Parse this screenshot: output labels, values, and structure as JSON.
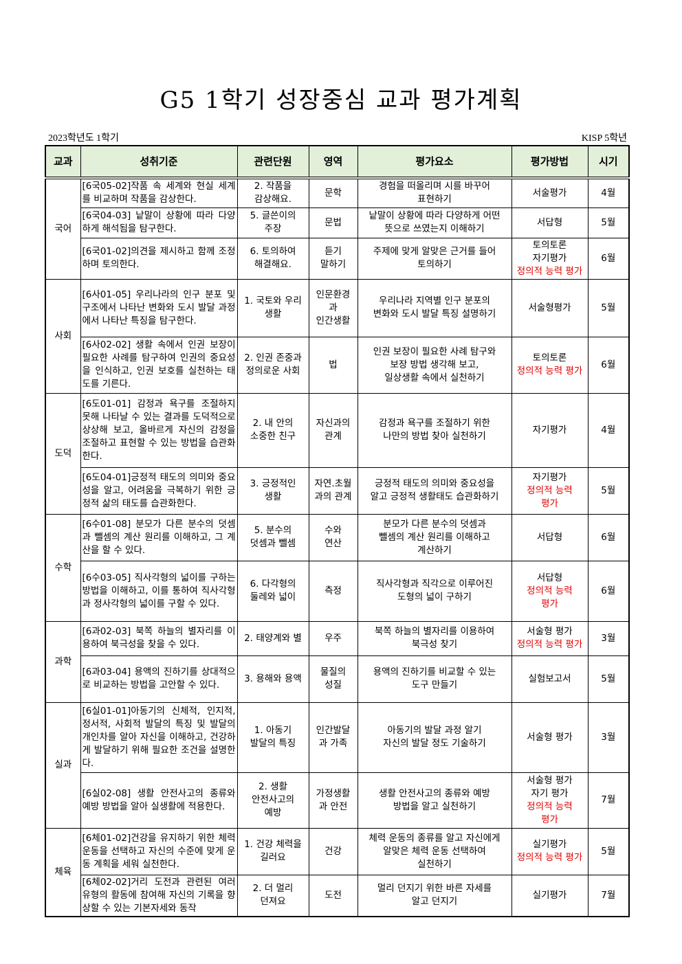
{
  "title": "G5 1학기 성장중심 교과 평가계획",
  "meta": {
    "year": "2023학년도 1학기",
    "grade": "KISP 5학년"
  },
  "colors": {
    "header_bg": "#e2efd9",
    "highlight": "#e00000"
  },
  "headers": [
    "교과",
    "성취기준",
    "관련단원",
    "영역",
    "평가요소",
    "평가방법",
    "시기"
  ],
  "subjects": [
    {
      "name": "국어",
      "rows": [
        {
          "standard": "[6국05-02]작품 속 세계와 현실 세계를 비교하며 작품을 감상한다.",
          "unit": "2. 작품을\n감상해요.",
          "area": "문학",
          "element": "경험을 떠올리며 시를 바꾸어\n표현하기",
          "method": "서술평가",
          "method_note": "",
          "time": "4월"
        },
        {
          "standard": "[6국04-03] 낱말이 상황에 따라 다양하게 해석됨을 탐구한다.",
          "unit": "5. 글쓴이의\n주장",
          "area": "문법",
          "element": "낱말이 상황에 따라 다양하게 어떤\n뜻으로 쓰였는지 이해하기",
          "method": "서답형",
          "method_note": "",
          "time": "5월"
        },
        {
          "standard": "[6국01-02]의견을 제시하고 함께 조정하며 토의한다.",
          "unit": "6. 토의하여\n해결해요.",
          "area": "듣기\n말하기",
          "element": "주제에 맞게 알맞은 근거를 들어\n토의하기",
          "method": "토의토론\n자기평가",
          "method_note": "정의적 능력 평가",
          "time": "6월"
        }
      ]
    },
    {
      "name": "사회",
      "rows": [
        {
          "standard": "[6사01-05] 우리나라의 인구 분포 및 구조에서 나타난 변화와 도시 발달 과정에서 나타난 특징을 탐구한다.",
          "unit": "1. 국토와 우리\n생활",
          "area": "인문환경\n과\n인간생활",
          "element": "우리나라 지역별 인구 분포의\n변화와 도시 발달 특징 설명하기",
          "method": "서술형평가",
          "method_note": "",
          "time": "5월"
        },
        {
          "standard": "[6사02-02] 생활 속에서 인권 보장이 필요한 사례를 탐구하여 인권의 중요성을 인식하고, 인권 보호를 실천하는 태도를 기른다.",
          "unit": "2. 인권 존중과\n정의로운 사회",
          "area": "법",
          "element": "인권 보장이 필요한 사례 탐구와\n보장 방법 생각해 보고,\n일상생활 속에서 실천하기",
          "method": "토의토론",
          "method_note": "정의적 능력 평가",
          "time": "6월"
        }
      ]
    },
    {
      "name": "도덕",
      "rows": [
        {
          "standard": "[6도01-01] 감정과 욕구를 조절하지 못해 나타날 수 있는 결과를 도덕적으로 상상해 보고, 올바르게 자신의 감정을 조절하고 표현할 수 있는 방법을 습관화한다.",
          "unit": "2. 내 안의\n소중한 친구",
          "area": "자신과의\n관계",
          "element": "감정과 욕구를 조절하기 위한\n나만의 방법 찾아 실천하기",
          "method": "자기평가",
          "method_note": "",
          "time": "4월"
        },
        {
          "standard": "[6도04-01]긍정적 태도의 의미와 중요성을 알고, 어려움을 극복하기 위한 긍정적 삶의 태도를 습관화한다.",
          "unit": "3. 긍정적인\n생활",
          "area": "자연.초월\n과의 관계",
          "element": "긍정적 태도의 의미와 중요성을\n알고 긍정적 생활태도 습관화하기",
          "method": "자기평가",
          "method_note": "정의적 능력\n평가",
          "time": "5월"
        }
      ]
    },
    {
      "name": "수학",
      "rows": [
        {
          "standard": "[6수01-08] 분모가 다른 분수의 덧셈과 뺄셈의 계산 원리를 이해하고, 그 계산을 할 수 있다.",
          "unit": "5. 분수의\n덧셈과 뺄셈",
          "area": "수와\n연산",
          "element": "분모가 다른 분수의 덧셈과\n뺄셈의 계산 원리를 이해하고\n계산하기",
          "method": "서답형",
          "method_note": "",
          "time": "6월"
        },
        {
          "standard": "[6수03-05] 직사각형의 넓이를 구하는 방법을 이해하고, 이를 통하여 직사각형과 정사각형의 넓이를 구할 수 있다.",
          "unit": "6. 다각형의\n둘레와 넓이",
          "area": "측정",
          "element": "직사각형과 직각으로 이루어진\n도형의 넓이 구하기",
          "method": "서답형",
          "method_note": "정의적 능력\n평가",
          "time": "6월"
        }
      ]
    },
    {
      "name": "과학",
      "rows": [
        {
          "standard": "[6과02-03] 북쪽 하늘의 별자리를 이용하여 북극성을 찾을 수 있다.",
          "unit": "2. 태양계와 별",
          "area": "우주",
          "element": "북쪽 하늘의 별자리를 이용하여\n북극성 찾기",
          "method": "서술형 평가",
          "method_note": "정의적 능력 평가",
          "time": "3월"
        },
        {
          "standard": "[6과03-04] 용액의 진하기를 상대적으로 비교하는 방법을 고안할 수 있다.",
          "unit": "3. 용해와 용액",
          "area": "물질의\n성질",
          "element": "용액의 진하기를 비교할 수 있는\n도구 만들기",
          "method": "실험보고서",
          "method_note": "",
          "time": "5월"
        }
      ]
    },
    {
      "name": "실과",
      "rows": [
        {
          "standard": "[6실01-01]아동기의 신체적, 인지적, 정서적, 사회적 발달의 특징 및 발달의 개인차를 알아 자신을 이해하고, 건강하게 발달하기 위해 필요한 조건을 설명한다.",
          "unit": "1. 아동기\n발달의 특징",
          "area": "인간발달\n과 가족",
          "element": "아동기의 발달 과정 알기\n자신의 발달 정도 기술하기",
          "method": "서술형 평가",
          "method_note": "",
          "time": "3월"
        },
        {
          "standard": "[6실02-08] 생활 안전사고의 종류와 예방 방법을 알아 실생활에 적용한다.",
          "unit": "2. 생활\n안전사고의\n예방",
          "area": "가정생활\n과 안전",
          "element": "생활 안전사고의 종류와 예방\n방법을 알고 실천하기",
          "method": "서술형 평가\n자기 평가",
          "method_note": "정의적 능력\n평가",
          "time": "7월"
        }
      ]
    },
    {
      "name": "체육",
      "rows": [
        {
          "standard": "[6체01-02]건강을 유지하기 위한 체력 운동을 선택하고 자신의 수준에 맞게 운동 계획을 세워 실천한다.",
          "unit": "1. 건강 체력을\n길러요",
          "area": "건강",
          "element": "체력 운동의 종류를 알고 자신에게\n알맞은 체력 운동 선택하여\n실천하기",
          "method": "실기평가",
          "method_note": "정의적 능력 평가",
          "time": "5월"
        },
        {
          "standard": "[6체02-02]거리 도전과 관련된 여러 유형의 활동에 참여해 자신의 기록을 향상할 수 있는 기본자세와 동작",
          "unit": "2. 더 멀리\n던져요",
          "area": "도전",
          "element": "멀리 던지기 위한 바른 자세를\n알고 던지기",
          "method": "실기평가",
          "method_note": "",
          "time": "7월"
        }
      ]
    }
  ]
}
